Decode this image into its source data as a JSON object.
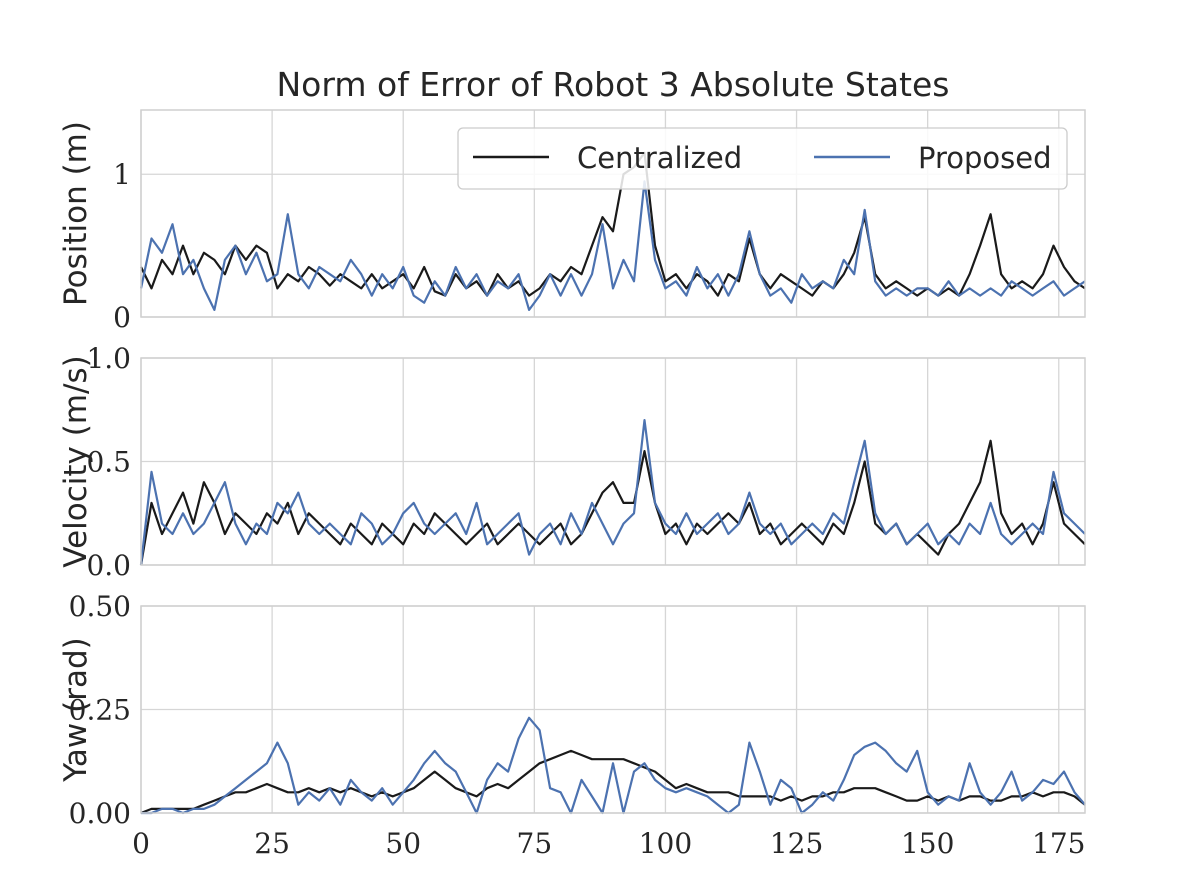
{
  "colors": {
    "Centralized": "#1a1a1a",
    "Proposed": "#4c72b0"
  },
  "chart_data": {
    "type": "line",
    "title": "Norm of Error of Robot 3 Absolute States",
    "legend": {
      "placement": "top-right",
      "entries": [
        "Centralized",
        "Proposed"
      ]
    },
    "grid": true,
    "xlim": [
      0,
      180
    ],
    "xticks": [
      0,
      25,
      50,
      75,
      100,
      125,
      150,
      175
    ],
    "x": [
      0,
      2,
      4,
      6,
      8,
      10,
      12,
      14,
      16,
      18,
      20,
      22,
      24,
      26,
      28,
      30,
      32,
      34,
      36,
      38,
      40,
      42,
      44,
      46,
      48,
      50,
      52,
      54,
      56,
      58,
      60,
      62,
      64,
      66,
      68,
      70,
      72,
      74,
      76,
      78,
      80,
      82,
      84,
      86,
      88,
      90,
      92,
      94,
      96,
      98,
      100,
      102,
      104,
      106,
      108,
      110,
      112,
      114,
      116,
      118,
      120,
      122,
      124,
      126,
      128,
      130,
      132,
      134,
      136,
      138,
      140,
      142,
      144,
      146,
      148,
      150,
      152,
      154,
      156,
      158,
      160,
      162,
      164,
      166,
      168,
      170,
      172,
      174,
      176,
      178,
      180
    ],
    "subplots": [
      {
        "ylabel": "Position (m)",
        "ylim": [
          0,
          1.45
        ],
        "yticks": [
          0,
          1
        ],
        "ytick_labels": [
          "0",
          "1"
        ],
        "series": [
          {
            "name": "Centralized",
            "values": [
              0.35,
              0.2,
              0.4,
              0.3,
              0.5,
              0.3,
              0.45,
              0.4,
              0.3,
              0.5,
              0.4,
              0.5,
              0.45,
              0.2,
              0.3,
              0.25,
              0.35,
              0.3,
              0.22,
              0.3,
              0.25,
              0.2,
              0.3,
              0.2,
              0.25,
              0.3,
              0.2,
              0.35,
              0.18,
              0.15,
              0.3,
              0.2,
              0.25,
              0.15,
              0.3,
              0.2,
              0.25,
              0.15,
              0.2,
              0.3,
              0.25,
              0.35,
              0.3,
              0.5,
              0.7,
              0.6,
              1.0,
              1.05,
              1.15,
              0.5,
              0.25,
              0.3,
              0.2,
              0.3,
              0.25,
              0.15,
              0.3,
              0.25,
              0.55,
              0.3,
              0.2,
              0.3,
              0.25,
              0.2,
              0.15,
              0.25,
              0.2,
              0.3,
              0.45,
              0.7,
              0.3,
              0.2,
              0.25,
              0.2,
              0.15,
              0.2,
              0.15,
              0.2,
              0.15,
              0.3,
              0.5,
              0.72,
              0.3,
              0.2,
              0.25,
              0.2,
              0.3,
              0.5,
              0.35,
              0.25,
              0.2
            ]
          },
          {
            "name": "Proposed",
            "values": [
              0.2,
              0.55,
              0.45,
              0.65,
              0.3,
              0.4,
              0.2,
              0.05,
              0.4,
              0.5,
              0.3,
              0.45,
              0.25,
              0.3,
              0.72,
              0.3,
              0.2,
              0.35,
              0.3,
              0.25,
              0.4,
              0.3,
              0.15,
              0.3,
              0.2,
              0.35,
              0.15,
              0.1,
              0.25,
              0.15,
              0.35,
              0.2,
              0.3,
              0.15,
              0.25,
              0.2,
              0.3,
              0.05,
              0.15,
              0.3,
              0.15,
              0.3,
              0.15,
              0.3,
              0.65,
              0.2,
              0.4,
              0.25,
              0.95,
              0.4,
              0.2,
              0.25,
              0.15,
              0.35,
              0.2,
              0.3,
              0.15,
              0.3,
              0.6,
              0.3,
              0.15,
              0.2,
              0.1,
              0.3,
              0.2,
              0.25,
              0.2,
              0.4,
              0.3,
              0.75,
              0.25,
              0.15,
              0.2,
              0.15,
              0.2,
              0.2,
              0.15,
              0.25,
              0.15,
              0.2,
              0.15,
              0.2,
              0.15,
              0.25,
              0.2,
              0.15,
              0.2,
              0.25,
              0.15,
              0.2,
              0.25
            ]
          }
        ]
      },
      {
        "ylabel": "Velocity (m/s)",
        "ylim": [
          0,
          1.0
        ],
        "yticks": [
          0,
          0.5,
          1.0
        ],
        "ytick_labels": [
          "0.0",
          "0.5",
          "1.0"
        ],
        "series": [
          {
            "name": "Centralized",
            "values": [
              0.0,
              0.3,
              0.15,
              0.25,
              0.35,
              0.2,
              0.4,
              0.3,
              0.15,
              0.25,
              0.2,
              0.15,
              0.25,
              0.2,
              0.3,
              0.15,
              0.25,
              0.2,
              0.15,
              0.1,
              0.2,
              0.15,
              0.1,
              0.2,
              0.15,
              0.1,
              0.2,
              0.15,
              0.25,
              0.2,
              0.15,
              0.1,
              0.15,
              0.2,
              0.1,
              0.15,
              0.2,
              0.15,
              0.1,
              0.15,
              0.2,
              0.1,
              0.15,
              0.25,
              0.35,
              0.4,
              0.3,
              0.3,
              0.55,
              0.3,
              0.15,
              0.2,
              0.1,
              0.2,
              0.15,
              0.2,
              0.25,
              0.2,
              0.3,
              0.15,
              0.2,
              0.1,
              0.15,
              0.2,
              0.15,
              0.1,
              0.2,
              0.15,
              0.3,
              0.5,
              0.2,
              0.15,
              0.2,
              0.1,
              0.15,
              0.1,
              0.05,
              0.15,
              0.2,
              0.3,
              0.4,
              0.6,
              0.25,
              0.15,
              0.2,
              0.1,
              0.2,
              0.4,
              0.2,
              0.15,
              0.1
            ]
          },
          {
            "name": "Proposed",
            "values": [
              0.0,
              0.45,
              0.2,
              0.15,
              0.25,
              0.15,
              0.2,
              0.3,
              0.4,
              0.2,
              0.1,
              0.2,
              0.15,
              0.3,
              0.25,
              0.35,
              0.2,
              0.15,
              0.2,
              0.15,
              0.1,
              0.25,
              0.2,
              0.1,
              0.15,
              0.25,
              0.3,
              0.2,
              0.15,
              0.2,
              0.25,
              0.15,
              0.3,
              0.1,
              0.15,
              0.2,
              0.25,
              0.05,
              0.15,
              0.2,
              0.1,
              0.25,
              0.15,
              0.3,
              0.2,
              0.1,
              0.2,
              0.25,
              0.7,
              0.3,
              0.2,
              0.15,
              0.25,
              0.15,
              0.2,
              0.25,
              0.15,
              0.2,
              0.35,
              0.2,
              0.15,
              0.2,
              0.1,
              0.15,
              0.2,
              0.15,
              0.25,
              0.2,
              0.4,
              0.6,
              0.25,
              0.15,
              0.2,
              0.1,
              0.15,
              0.2,
              0.1,
              0.15,
              0.1,
              0.2,
              0.15,
              0.3,
              0.15,
              0.1,
              0.15,
              0.2,
              0.15,
              0.45,
              0.25,
              0.2,
              0.15
            ]
          }
        ]
      },
      {
        "ylabel": "Yaw (rad)",
        "ylim": [
          0,
          0.5
        ],
        "yticks": [
          0,
          0.25,
          0.5
        ],
        "ytick_labels": [
          "0.00",
          "0.25",
          "0.50"
        ],
        "series": [
          {
            "name": "Centralized",
            "values": [
              0.0,
              0.01,
              0.01,
              0.01,
              0.01,
              0.01,
              0.02,
              0.03,
              0.04,
              0.05,
              0.05,
              0.06,
              0.07,
              0.06,
              0.05,
              0.05,
              0.06,
              0.05,
              0.06,
              0.05,
              0.06,
              0.05,
              0.04,
              0.05,
              0.04,
              0.05,
              0.06,
              0.08,
              0.1,
              0.08,
              0.06,
              0.05,
              0.04,
              0.06,
              0.07,
              0.06,
              0.08,
              0.1,
              0.12,
              0.13,
              0.14,
              0.15,
              0.14,
              0.13,
              0.13,
              0.13,
              0.13,
              0.12,
              0.11,
              0.1,
              0.08,
              0.06,
              0.07,
              0.06,
              0.05,
              0.05,
              0.05,
              0.04,
              0.04,
              0.04,
              0.04,
              0.03,
              0.04,
              0.03,
              0.04,
              0.04,
              0.05,
              0.05,
              0.06,
              0.06,
              0.06,
              0.05,
              0.04,
              0.03,
              0.03,
              0.04,
              0.03,
              0.04,
              0.03,
              0.04,
              0.04,
              0.03,
              0.03,
              0.04,
              0.04,
              0.05,
              0.04,
              0.05,
              0.05,
              0.04,
              0.02
            ]
          },
          {
            "name": "Proposed",
            "values": [
              0.0,
              0.0,
              0.01,
              0.01,
              0.0,
              0.01,
              0.01,
              0.02,
              0.04,
              0.06,
              0.08,
              0.1,
              0.12,
              0.17,
              0.12,
              0.02,
              0.05,
              0.03,
              0.06,
              0.02,
              0.08,
              0.05,
              0.03,
              0.06,
              0.02,
              0.05,
              0.08,
              0.12,
              0.15,
              0.12,
              0.1,
              0.05,
              0.0,
              0.08,
              0.12,
              0.1,
              0.18,
              0.23,
              0.2,
              0.06,
              0.05,
              0.0,
              0.08,
              0.04,
              0.0,
              0.12,
              0.0,
              0.1,
              0.12,
              0.08,
              0.06,
              0.05,
              0.06,
              0.05,
              0.04,
              0.02,
              0.0,
              0.02,
              0.17,
              0.1,
              0.02,
              0.08,
              0.06,
              0.0,
              0.02,
              0.05,
              0.03,
              0.08,
              0.14,
              0.16,
              0.17,
              0.15,
              0.12,
              0.1,
              0.15,
              0.05,
              0.02,
              0.04,
              0.03,
              0.12,
              0.05,
              0.02,
              0.05,
              0.1,
              0.03,
              0.05,
              0.08,
              0.07,
              0.1,
              0.05,
              0.02
            ]
          }
        ]
      }
    ]
  }
}
